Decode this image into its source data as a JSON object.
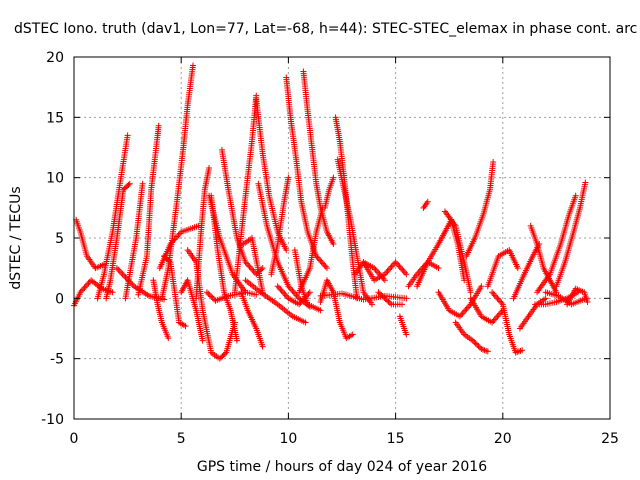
{
  "chart_data": {
    "type": "scatter",
    "title": "dSTEC Iono. truth (dav1, Lon=77, Lat=-68, h=44): STEC-STEC_elemax in phase cont. arc",
    "xlabel": "GPS time / hours of day 024 of year 2016",
    "ylabel": "dSTEC  / TECUs",
    "xlim": [
      0,
      25
    ],
    "ylim": [
      -10,
      20
    ],
    "x_ticks": [
      0,
      5,
      10,
      15,
      20,
      25
    ],
    "y_ticks": [
      -10,
      -5,
      0,
      5,
      10,
      15,
      20
    ],
    "grid": true,
    "marker": "plus",
    "color": "#ff0000",
    "arcs": [
      [
        [
          0.0,
          -0.6
        ],
        [
          0.3,
          0.5
        ],
        [
          0.8,
          1.5
        ],
        [
          1.3,
          0.8
        ],
        [
          1.8,
          0.5
        ]
      ],
      [
        [
          0.1,
          6.5
        ],
        [
          0.3,
          5.5
        ],
        [
          0.6,
          3.5
        ],
        [
          1.0,
          2.5
        ],
        [
          1.4,
          2.8
        ]
      ],
      [
        [
          1.1,
          0.0
        ],
        [
          1.4,
          2.0
        ],
        [
          1.8,
          5.5
        ],
        [
          2.1,
          9.0
        ],
        [
          2.5,
          13.5
        ]
      ],
      [
        [
          1.5,
          0.0
        ],
        [
          1.7,
          1.5
        ],
        [
          2.0,
          5.0
        ],
        [
          2.3,
          9.0
        ],
        [
          2.6,
          9.5
        ]
      ],
      [
        [
          2.4,
          0.0
        ],
        [
          2.9,
          5.0
        ],
        [
          3.2,
          9.5
        ]
      ],
      [
        [
          3.0,
          0.3
        ],
        [
          3.4,
          3.5
        ],
        [
          3.6,
          9.0
        ],
        [
          3.9,
          13.5
        ],
        [
          3.95,
          14.3
        ]
      ],
      [
        [
          2.0,
          2.5
        ],
        [
          2.8,
          1.0
        ],
        [
          3.5,
          0.2
        ],
        [
          4.2,
          -0.1
        ]
      ],
      [
        [
          3.7,
          1.5
        ],
        [
          3.9,
          -0.5
        ],
        [
          4.1,
          -2.0
        ],
        [
          4.4,
          -3.3
        ]
      ],
      [
        [
          4.2,
          3.5
        ],
        [
          4.5,
          3.0
        ],
        [
          4.9,
          -2.0
        ],
        [
          5.2,
          -2.3
        ]
      ],
      [
        [
          4.0,
          2.5
        ],
        [
          4.5,
          4.5
        ],
        [
          5.0,
          5.5
        ],
        [
          5.8,
          6.0
        ]
      ],
      [
        [
          4.1,
          0.0
        ],
        [
          4.4,
          2.5
        ],
        [
          4.8,
          8.0
        ],
        [
          5.1,
          12.5
        ],
        [
          5.3,
          16.0
        ],
        [
          5.55,
          19.3
        ]
      ],
      [
        [
          5.0,
          0.5
        ],
        [
          5.3,
          1.5
        ],
        [
          5.7,
          -1.0
        ],
        [
          6.0,
          -3.5
        ]
      ],
      [
        [
          5.3,
          4.0
        ],
        [
          5.7,
          3.0
        ],
        [
          6.0,
          -1.0
        ],
        [
          6.4,
          -4.5
        ],
        [
          6.8,
          -5.0
        ],
        [
          7.1,
          -4.5
        ],
        [
          7.5,
          -2.0
        ]
      ],
      [
        [
          5.7,
          0.0
        ],
        [
          5.9,
          5.0
        ],
        [
          6.1,
          9.0
        ],
        [
          6.3,
          10.8
        ]
      ],
      [
        [
          6.4,
          8.5
        ],
        [
          6.7,
          4.0
        ],
        [
          7.0,
          0.5
        ],
        [
          7.3,
          -1.0
        ],
        [
          7.6,
          -3.5
        ]
      ],
      [
        [
          6.2,
          0.5
        ],
        [
          6.6,
          -0.2
        ],
        [
          7.2,
          0.2
        ],
        [
          7.8,
          0.4
        ]
      ],
      [
        [
          6.9,
          12.3
        ],
        [
          7.2,
          9.0
        ],
        [
          7.6,
          5.0
        ],
        [
          8.0,
          3.0
        ],
        [
          8.5,
          2.0
        ],
        [
          8.8,
          2.5
        ]
      ],
      [
        [
          6.3,
          8.5
        ],
        [
          6.8,
          5.0
        ],
        [
          7.4,
          2.0
        ],
        [
          8.0,
          0.5
        ],
        [
          8.5,
          0.3
        ]
      ],
      [
        [
          7.8,
          0.5
        ],
        [
          8.1,
          -1.0
        ],
        [
          8.5,
          -2.5
        ],
        [
          8.8,
          -4.0
        ]
      ],
      [
        [
          7.9,
          4.5
        ],
        [
          8.3,
          5.0
        ],
        [
          8.8,
          0.5
        ]
      ],
      [
        [
          7.5,
          0.5
        ],
        [
          8.0,
          8.5
        ],
        [
          8.3,
          13.0
        ],
        [
          8.5,
          16.8
        ]
      ],
      [
        [
          8.5,
          16.5
        ],
        [
          8.8,
          12.0
        ],
        [
          9.1,
          8.5
        ],
        [
          9.5,
          5.5
        ],
        [
          9.9,
          4.0
        ]
      ],
      [
        [
          8.6,
          9.5
        ],
        [
          9.0,
          6.0
        ],
        [
          9.5,
          3.0
        ],
        [
          10.0,
          1.0
        ],
        [
          10.5,
          0.0
        ],
        [
          11.0,
          -0.7
        ]
      ],
      [
        [
          8.0,
          1.5
        ],
        [
          8.7,
          0.5
        ],
        [
          9.5,
          -0.5
        ],
        [
          10.2,
          -1.5
        ],
        [
          10.8,
          -2.0
        ]
      ],
      [
        [
          9.2,
          2.0
        ],
        [
          9.5,
          4.5
        ],
        [
          9.8,
          8.0
        ],
        [
          10.0,
          10.0
        ]
      ],
      [
        [
          9.5,
          1.0
        ],
        [
          10.0,
          0.0
        ],
        [
          10.5,
          -0.5
        ],
        [
          11.0,
          0.5
        ]
      ],
      [
        [
          9.9,
          18.3
        ],
        [
          10.1,
          15.0
        ],
        [
          10.4,
          11.0
        ],
        [
          10.6,
          8.0
        ],
        [
          10.9,
          5.5
        ],
        [
          11.3,
          3.5
        ],
        [
          11.8,
          2.5
        ]
      ],
      [
        [
          10.3,
          4.0
        ],
        [
          10.6,
          1.0
        ],
        [
          10.9,
          -0.5
        ],
        [
          11.5,
          -1.0
        ]
      ],
      [
        [
          10.7,
          18.8
        ],
        [
          10.9,
          15.5
        ],
        [
          11.1,
          12.5
        ],
        [
          11.3,
          9.5
        ],
        [
          11.5,
          7.5
        ],
        [
          11.8,
          5.5
        ],
        [
          12.1,
          4.5
        ]
      ],
      [
        [
          10.5,
          0.5
        ],
        [
          11.0,
          2.5
        ],
        [
          11.3,
          5.5
        ],
        [
          11.6,
          7.5
        ]
      ],
      [
        [
          11.7,
          7.5
        ],
        [
          11.9,
          9.0
        ],
        [
          12.1,
          10.0
        ]
      ],
      [
        [
          12.2,
          15.0
        ],
        [
          12.4,
          13.0
        ],
        [
          12.6,
          10.0
        ],
        [
          12.8,
          6.5
        ],
        [
          13.0,
          3.0
        ],
        [
          13.2,
          0.0
        ]
      ],
      [
        [
          11.5,
          -0.3
        ],
        [
          11.8,
          1.5
        ],
        [
          12.1,
          0.5
        ],
        [
          12.4,
          -2.0
        ],
        [
          12.7,
          -3.3
        ],
        [
          13.0,
          -3.0
        ]
      ],
      [
        [
          12.3,
          11.5
        ],
        [
          12.6,
          9.0
        ],
        [
          12.9,
          6.5
        ],
        [
          13.2,
          3.5
        ],
        [
          13.5,
          0.5
        ],
        [
          13.9,
          -0.5
        ]
      ],
      [
        [
          11.5,
          0.2
        ],
        [
          12.5,
          0.4
        ],
        [
          13.5,
          -0.1
        ],
        [
          14.5,
          0.2
        ],
        [
          15.5,
          0.0
        ]
      ],
      [
        [
          13.1,
          2.0
        ],
        [
          13.5,
          3.0
        ],
        [
          14.0,
          2.5
        ],
        [
          14.5,
          1.5
        ]
      ],
      [
        [
          13.5,
          3.0
        ],
        [
          14.0,
          1.5
        ],
        [
          14.5,
          2.0
        ],
        [
          15.0,
          3.0
        ],
        [
          15.5,
          2.0
        ]
      ],
      [
        [
          14.2,
          0.5
        ],
        [
          14.8,
          -0.5
        ],
        [
          15.3,
          -0.5
        ]
      ],
      [
        [
          15.2,
          -1.5
        ],
        [
          15.4,
          -2.5
        ],
        [
          15.5,
          -3.0
        ]
      ],
      [
        [
          15.6,
          1.0
        ],
        [
          16.0,
          2.0
        ],
        [
          16.5,
          3.0
        ],
        [
          17.0,
          2.5
        ]
      ],
      [
        [
          16.0,
          1.0
        ],
        [
          16.5,
          3.0
        ],
        [
          17.0,
          4.5
        ],
        [
          17.3,
          5.5
        ],
        [
          17.6,
          6.5
        ],
        [
          17.9,
          4.5
        ],
        [
          18.2,
          1.5
        ]
      ],
      [
        [
          17.3,
          7.2
        ],
        [
          17.8,
          6.0
        ],
        [
          18.2,
          3.0
        ],
        [
          18.5,
          0.5
        ]
      ],
      [
        [
          16.3,
          7.5
        ],
        [
          16.5,
          8.0
        ]
      ],
      [
        [
          17.0,
          0.5
        ],
        [
          17.5,
          -1.0
        ],
        [
          18.0,
          -1.5
        ],
        [
          18.5,
          -0.5
        ],
        [
          19.0,
          1.0
        ]
      ],
      [
        [
          17.8,
          -2.0
        ],
        [
          18.2,
          -3.0
        ],
        [
          18.6,
          -3.5
        ],
        [
          19.0,
          -4.2
        ],
        [
          19.3,
          -4.4
        ]
      ],
      [
        [
          18.3,
          3.5
        ],
        [
          18.7,
          5.0
        ],
        [
          19.1,
          7.0
        ],
        [
          19.4,
          9.0
        ],
        [
          19.55,
          11.3
        ]
      ],
      [
        [
          18.5,
          0.0
        ],
        [
          19.0,
          -1.5
        ],
        [
          19.5,
          -2.0
        ],
        [
          20.0,
          -1.0
        ]
      ],
      [
        [
          19.3,
          1.0
        ],
        [
          19.8,
          3.5
        ],
        [
          20.3,
          4.0
        ],
        [
          20.7,
          2.5
        ]
      ],
      [
        [
          19.5,
          0.5
        ],
        [
          20.0,
          -0.5
        ],
        [
          20.3,
          -3.0
        ],
        [
          20.6,
          -4.5
        ],
        [
          20.9,
          -4.3
        ]
      ],
      [
        [
          20.8,
          -2.5
        ],
        [
          21.2,
          -1.5
        ],
        [
          21.6,
          -0.5
        ],
        [
          22.0,
          0.0
        ]
      ],
      [
        [
          20.5,
          0.0
        ],
        [
          21.0,
          2.0
        ],
        [
          21.4,
          3.5
        ],
        [
          21.7,
          4.5
        ]
      ],
      [
        [
          21.3,
          6.0
        ],
        [
          21.6,
          4.5
        ],
        [
          21.9,
          2.5
        ],
        [
          22.2,
          1.5
        ],
        [
          22.5,
          0.5
        ]
      ],
      [
        [
          21.6,
          0.5
        ],
        [
          22.2,
          2.0
        ],
        [
          22.7,
          4.5
        ],
        [
          23.1,
          7.0
        ],
        [
          23.4,
          8.5
        ]
      ],
      [
        [
          21.5,
          -0.5
        ],
        [
          22.0,
          -0.5
        ],
        [
          22.5,
          -0.3
        ],
        [
          23.0,
          0.0
        ],
        [
          23.5,
          0.5
        ]
      ],
      [
        [
          22.5,
          1.0
        ],
        [
          22.9,
          3.0
        ],
        [
          23.3,
          5.5
        ],
        [
          23.6,
          7.5
        ],
        [
          23.85,
          9.6
        ]
      ],
      [
        [
          22.0,
          0.5
        ],
        [
          22.6,
          0.2
        ],
        [
          23.2,
          -0.5
        ],
        [
          23.9,
          0.0
        ]
      ],
      [
        [
          23.0,
          -0.5
        ],
        [
          23.4,
          0.8
        ],
        [
          23.8,
          0.5
        ],
        [
          23.95,
          -0.3
        ]
      ]
    ]
  }
}
